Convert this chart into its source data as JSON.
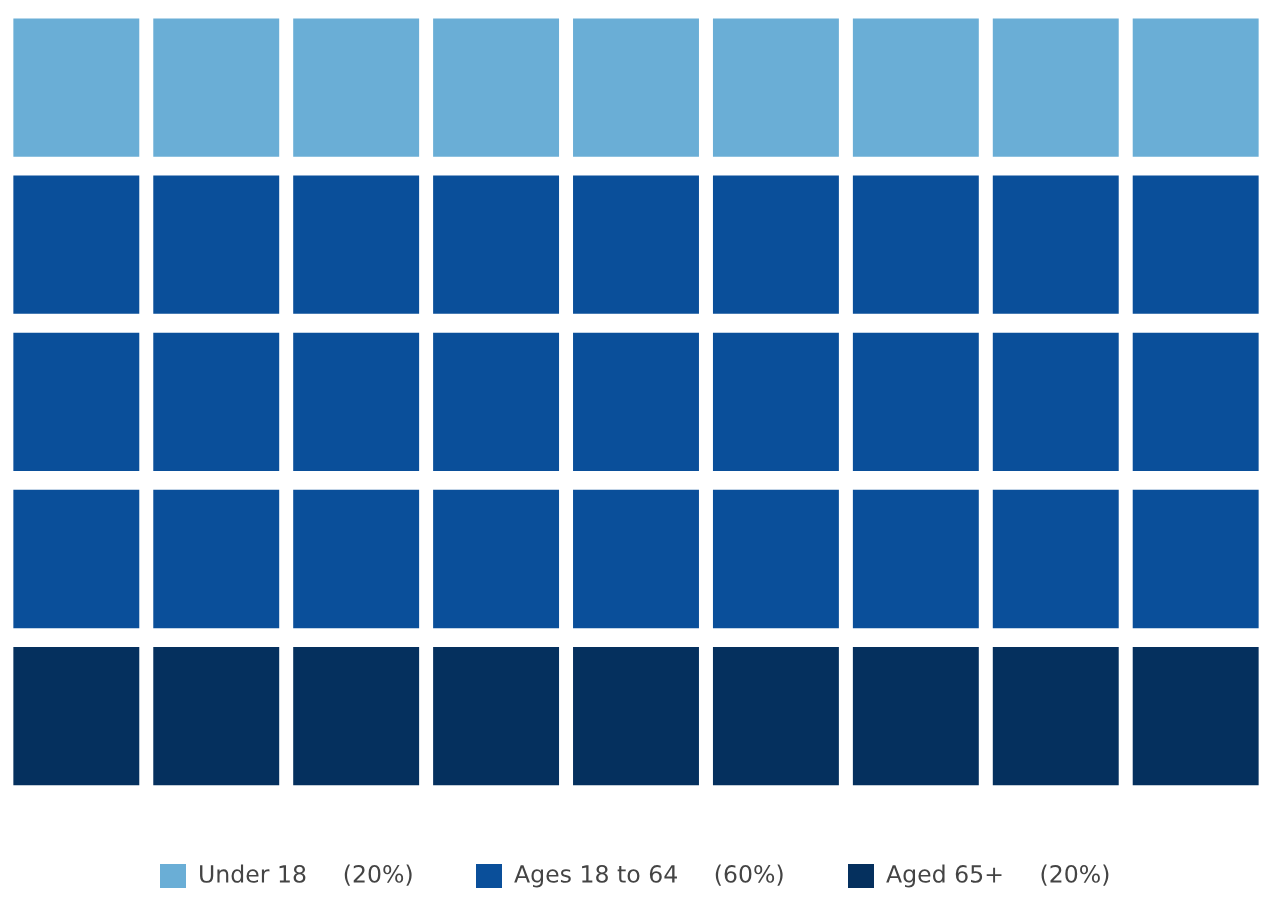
{
  "chart_data": {
    "type": "other",
    "categories": [
      "Under 18",
      "Ages 18 to 64",
      "Aged 65+"
    ],
    "values": [
      20,
      60,
      20
    ],
    "value_labels": [
      "(20%)",
      "(60%)",
      "(20%)"
    ],
    "colors": [
      "#6aaed6",
      "#0a4f9a",
      "#05305e"
    ]
  }
}
